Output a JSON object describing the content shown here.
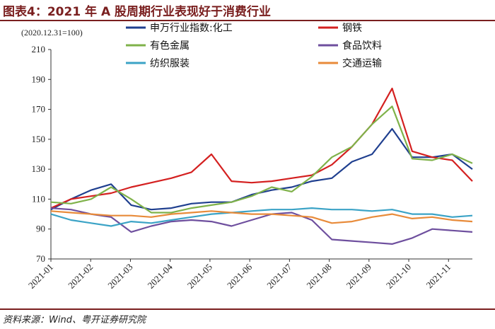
{
  "title": "图表4：2021 年 A 股周期行业表现好于消费行业",
  "source": "资料来源：Wind、粤开证券研究院",
  "chart_data": {
    "type": "line",
    "note": "(2020.12.31=100)",
    "ylim": [
      70,
      210
    ],
    "yticks": [
      70,
      90,
      110,
      130,
      150,
      170,
      190,
      210
    ],
    "x_tick_labels": [
      "2021-01",
      "2021-02",
      "2021-03",
      "2021-04",
      "2021-05",
      "2021-06",
      "2021-07",
      "2021-08",
      "2021-09",
      "2021-10",
      "2021-11"
    ],
    "x": [
      "2021-01",
      "2021-01b",
      "2021-02",
      "2021-02b",
      "2021-03",
      "2021-03b",
      "2021-04",
      "2021-04b",
      "2021-05",
      "2021-05b",
      "2021-06",
      "2021-06b",
      "2021-07",
      "2021-07b",
      "2021-08",
      "2021-08b",
      "2021-09",
      "2021-09b",
      "2021-10",
      "2021-10b",
      "2021-11",
      "2021-11b"
    ],
    "legend_position": "top-right",
    "series": [
      {
        "name": "申万行业指数:化工",
        "color": "#1f3f8f",
        "values": [
          103,
          110,
          116,
          120,
          106,
          103,
          104,
          107,
          108,
          108,
          113,
          116,
          118,
          122,
          124,
          135,
          140,
          157,
          138,
          138,
          140,
          130
        ]
      },
      {
        "name": "钢铁",
        "color": "#d42020",
        "values": [
          104,
          110,
          112,
          114,
          118,
          121,
          124,
          128,
          140,
          122,
          121,
          122,
          124,
          126,
          133,
          145,
          160,
          184,
          142,
          138,
          136,
          122
        ]
      },
      {
        "name": "有色金属",
        "color": "#7fb24a",
        "values": [
          108,
          107,
          110,
          118,
          110,
          101,
          101,
          104,
          106,
          108,
          112,
          118,
          115,
          125,
          138,
          145,
          160,
          172,
          137,
          136,
          140,
          134
        ]
      },
      {
        "name": "食品饮料",
        "color": "#6e4f9e",
        "values": [
          104,
          103,
          100,
          98,
          88,
          92,
          95,
          96,
          95,
          92,
          96,
          100,
          101,
          96,
          83,
          82,
          81,
          80,
          84,
          90,
          89,
          88
        ]
      },
      {
        "name": "纺织服装",
        "color": "#3ba3c6",
        "values": [
          100,
          96,
          94,
          92,
          95,
          94,
          96,
          98,
          100,
          101,
          102,
          103,
          103,
          104,
          103,
          103,
          102,
          103,
          100,
          100,
          98,
          99
        ]
      },
      {
        "name": "交通运输",
        "color": "#e88b3a",
        "values": [
          102,
          101,
          100,
          99,
          99,
          98,
          100,
          101,
          102,
          101,
          100,
          100,
          99,
          98,
          94,
          95,
          98,
          100,
          97,
          98,
          96,
          95
        ]
      }
    ]
  }
}
